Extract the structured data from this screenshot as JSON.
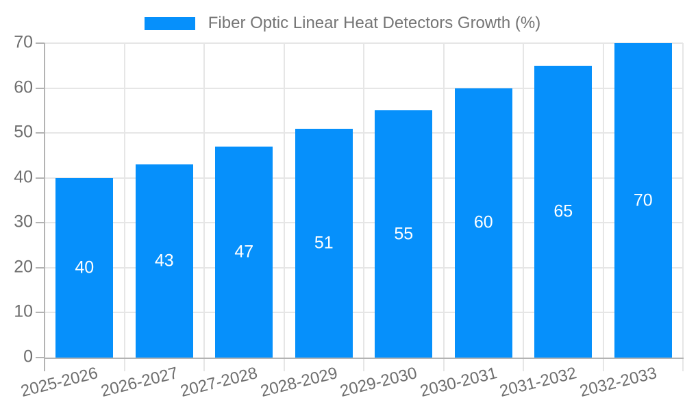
{
  "legend": {
    "label": "Fiber Optic Linear Heat Detectors Growth (%)"
  },
  "chart_data": {
    "type": "bar",
    "title": "Fiber Optic Linear Heat Detectors Growth (%)",
    "categories": [
      "2025-2026",
      "2026-2027",
      "2027-2028",
      "2028-2029",
      "2029-2030",
      "2030-2031",
      "2031-2032",
      "2032-2033"
    ],
    "values": [
      40,
      43,
      47,
      51,
      55,
      60,
      65,
      70
    ],
    "series": [
      {
        "name": "Fiber Optic Linear Heat Detectors Growth (%)",
        "values": [
          40,
          43,
          47,
          51,
          55,
          60,
          65,
          70
        ]
      }
    ],
    "xlabel": "",
    "ylabel": "",
    "ylim": [
      0,
      70
    ],
    "yticks": [
      0,
      10,
      20,
      30,
      40,
      50,
      60,
      70
    ],
    "grid": true,
    "legend_position": "top",
    "bar_value_labels_visible": true,
    "colors": {
      "bar": "#0690fb",
      "bar_value_text": "#ffffff",
      "axis_text": "#6e6e6e",
      "legend_text": "#757575",
      "gridline": "#e6e6e6",
      "axis_line": "#b3b3b3",
      "background": "#ffffff"
    }
  }
}
